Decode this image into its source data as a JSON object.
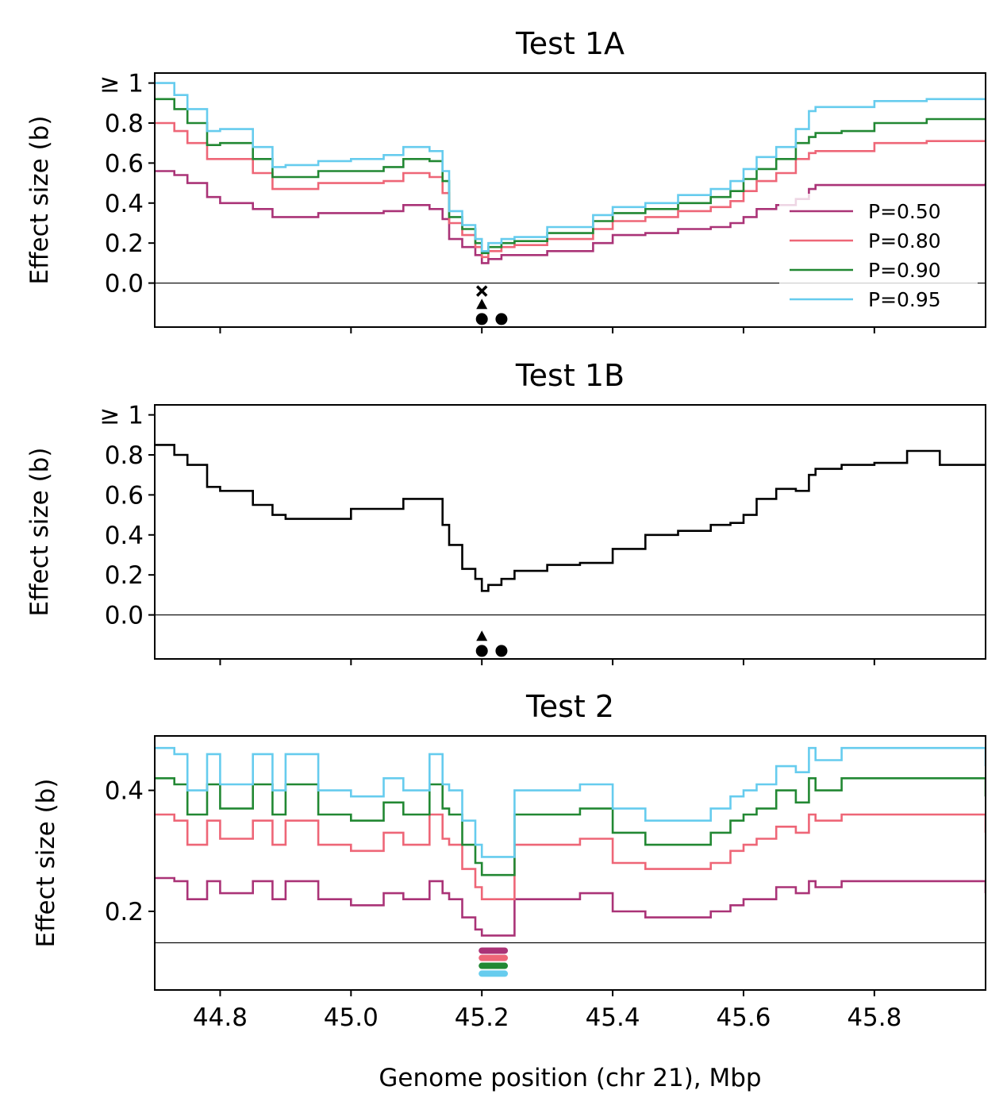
{
  "chart_data": [
    {
      "type": "line",
      "title": "Test 1A",
      "ylabel": "Effect size (b)",
      "xlabel": "",
      "xlim": [
        44.7,
        45.97
      ],
      "ylim": [
        -0.22,
        1.05
      ],
      "x_ticks": [
        "44.8",
        "45.0",
        "45.2",
        "45.4",
        "45.6",
        "45.8"
      ],
      "x_tick_values": [
        44.8,
        45.0,
        45.2,
        45.4,
        45.6,
        45.8
      ],
      "y_ticks": [
        "0.0",
        "0.2",
        "0.4",
        "0.6",
        "0.8",
        "≥ 1"
      ],
      "y_tick_values": [
        0.0,
        0.2,
        0.4,
        0.6,
        0.8,
        1.0
      ],
      "hline": 0.0,
      "legend_placement": "lower-right",
      "x": [
        44.7,
        44.73,
        44.75,
        44.78,
        44.8,
        44.85,
        44.88,
        44.9,
        44.95,
        45.0,
        45.05,
        45.08,
        45.12,
        45.14,
        45.15,
        45.17,
        45.19,
        45.2,
        45.21,
        45.23,
        45.25,
        45.3,
        45.35,
        45.37,
        45.4,
        45.45,
        45.5,
        45.55,
        45.58,
        45.6,
        45.62,
        45.65,
        45.68,
        45.7,
        45.71,
        45.75,
        45.8,
        45.85,
        45.88,
        45.9,
        45.97
      ],
      "series": [
        {
          "name": "P=0.50",
          "color": "#aa3377",
          "values": [
            0.56,
            0.54,
            0.5,
            0.43,
            0.4,
            0.37,
            0.33,
            0.33,
            0.35,
            0.35,
            0.36,
            0.39,
            0.37,
            0.32,
            0.22,
            0.18,
            0.14,
            0.1,
            0.12,
            0.14,
            0.14,
            0.16,
            0.16,
            0.2,
            0.24,
            0.25,
            0.27,
            0.28,
            0.3,
            0.33,
            0.37,
            0.39,
            0.42,
            0.47,
            0.49,
            0.49,
            0.49,
            0.49,
            0.49,
            0.49,
            0.5
          ]
        },
        {
          "name": "P=0.80",
          "color": "#ee6677",
          "values": [
            0.8,
            0.76,
            0.7,
            0.62,
            0.62,
            0.55,
            0.47,
            0.47,
            0.5,
            0.5,
            0.51,
            0.55,
            0.53,
            0.45,
            0.3,
            0.24,
            0.18,
            0.13,
            0.16,
            0.18,
            0.19,
            0.22,
            0.22,
            0.27,
            0.31,
            0.33,
            0.36,
            0.38,
            0.41,
            0.46,
            0.51,
            0.55,
            0.62,
            0.65,
            0.66,
            0.66,
            0.7,
            0.7,
            0.71,
            0.71,
            0.71
          ]
        },
        {
          "name": "P=0.90",
          "color": "#228833",
          "values": [
            0.92,
            0.87,
            0.8,
            0.69,
            0.7,
            0.62,
            0.53,
            0.53,
            0.56,
            0.56,
            0.58,
            0.62,
            0.61,
            0.51,
            0.33,
            0.27,
            0.2,
            0.15,
            0.18,
            0.2,
            0.21,
            0.25,
            0.25,
            0.31,
            0.35,
            0.37,
            0.4,
            0.43,
            0.46,
            0.52,
            0.57,
            0.62,
            0.7,
            0.73,
            0.75,
            0.76,
            0.8,
            0.8,
            0.82,
            0.82,
            0.82
          ]
        },
        {
          "name": "P=0.95",
          "color": "#66ccee",
          "values": [
            1.0,
            0.94,
            0.87,
            0.76,
            0.77,
            0.68,
            0.58,
            0.59,
            0.61,
            0.62,
            0.64,
            0.68,
            0.66,
            0.56,
            0.36,
            0.29,
            0.22,
            0.16,
            0.2,
            0.22,
            0.23,
            0.28,
            0.28,
            0.34,
            0.38,
            0.4,
            0.44,
            0.47,
            0.51,
            0.57,
            0.63,
            0.68,
            0.77,
            0.86,
            0.88,
            0.88,
            0.91,
            0.91,
            0.92,
            0.92,
            0.92
          ]
        }
      ],
      "markers": [
        {
          "shape": "x",
          "x": 45.2,
          "y": -0.04
        },
        {
          "shape": "triangle",
          "x": 45.2,
          "y": -0.11
        },
        {
          "shape": "circle",
          "x": 45.2,
          "y": -0.18
        },
        {
          "shape": "circle",
          "x": 45.23,
          "y": -0.18
        }
      ]
    },
    {
      "type": "line",
      "title": "Test 1B",
      "ylabel": "Effect size (b)",
      "xlabel": "",
      "xlim": [
        44.7,
        45.97
      ],
      "ylim": [
        -0.22,
        1.05
      ],
      "x_ticks": [
        "44.8",
        "45.0",
        "45.2",
        "45.4",
        "45.6",
        "45.8"
      ],
      "x_tick_values": [
        44.8,
        45.0,
        45.2,
        45.4,
        45.6,
        45.8
      ],
      "y_ticks": [
        "0.0",
        "0.2",
        "0.4",
        "0.6",
        "0.8",
        "≥ 1"
      ],
      "y_tick_values": [
        0.0,
        0.2,
        0.4,
        0.6,
        0.8,
        1.0
      ],
      "hline": 0.0,
      "x": [
        44.7,
        44.73,
        44.75,
        44.78,
        44.8,
        44.85,
        44.88,
        44.9,
        44.95,
        45.0,
        45.05,
        45.08,
        45.12,
        45.14,
        45.15,
        45.17,
        45.19,
        45.2,
        45.21,
        45.23,
        45.25,
        45.3,
        45.35,
        45.37,
        45.4,
        45.45,
        45.5,
        45.55,
        45.58,
        45.6,
        45.62,
        45.65,
        45.68,
        45.7,
        45.71,
        45.75,
        45.8,
        45.85,
        45.88,
        45.9,
        45.97
      ],
      "series": [
        {
          "color": "#000000",
          "values": [
            0.85,
            0.8,
            0.75,
            0.64,
            0.62,
            0.55,
            0.5,
            0.48,
            0.48,
            0.53,
            0.53,
            0.58,
            0.58,
            0.45,
            0.35,
            0.23,
            0.18,
            0.12,
            0.15,
            0.18,
            0.22,
            0.25,
            0.26,
            0.26,
            0.33,
            0.4,
            0.42,
            0.45,
            0.46,
            0.5,
            0.58,
            0.63,
            0.62,
            0.7,
            0.73,
            0.75,
            0.76,
            0.82,
            0.82,
            0.75,
            0.75
          ]
        }
      ],
      "markers": [
        {
          "shape": "triangle",
          "x": 45.2,
          "y": -0.11
        },
        {
          "shape": "circle",
          "x": 45.2,
          "y": -0.18
        },
        {
          "shape": "circle",
          "x": 45.23,
          "y": -0.18
        }
      ]
    },
    {
      "type": "line",
      "title": "Test 2",
      "ylabel": "Effect size (b)",
      "xlabel": "Genome position (chr 21), Mbp",
      "xlim": [
        44.7,
        45.97
      ],
      "ylim": [
        0.07,
        0.49
      ],
      "x_ticks": [
        "44.8",
        "45.0",
        "45.2",
        "45.4",
        "45.6",
        "45.8"
      ],
      "x_tick_values": [
        44.8,
        45.0,
        45.2,
        45.4,
        45.6,
        45.8
      ],
      "y_ticks": [
        "0.2",
        "0.4"
      ],
      "y_tick_values": [
        0.2,
        0.4
      ],
      "hline": 0.148,
      "x": [
        44.7,
        44.73,
        44.75,
        44.78,
        44.8,
        44.85,
        44.88,
        44.9,
        44.95,
        45.0,
        45.05,
        45.08,
        45.12,
        45.14,
        45.15,
        45.17,
        45.19,
        45.2,
        45.21,
        45.23,
        45.25,
        45.3,
        45.35,
        45.37,
        45.4,
        45.45,
        45.5,
        45.55,
        45.58,
        45.6,
        45.62,
        45.65,
        45.68,
        45.7,
        45.71,
        45.75,
        45.8,
        45.85,
        45.88,
        45.9,
        45.97
      ],
      "series": [
        {
          "name": "P=0.50",
          "color": "#aa3377",
          "values": [
            0.255,
            0.25,
            0.22,
            0.25,
            0.23,
            0.25,
            0.22,
            0.25,
            0.22,
            0.21,
            0.23,
            0.22,
            0.25,
            0.23,
            0.22,
            0.19,
            0.17,
            0.16,
            0.16,
            0.16,
            0.22,
            0.22,
            0.23,
            0.23,
            0.2,
            0.19,
            0.19,
            0.2,
            0.21,
            0.22,
            0.22,
            0.24,
            0.23,
            0.25,
            0.24,
            0.25,
            0.25,
            0.25,
            0.25,
            0.25,
            0.23
          ]
        },
        {
          "name": "P=0.80",
          "color": "#ee6677",
          "values": [
            0.36,
            0.35,
            0.31,
            0.35,
            0.32,
            0.35,
            0.31,
            0.35,
            0.31,
            0.3,
            0.33,
            0.31,
            0.36,
            0.32,
            0.31,
            0.27,
            0.24,
            0.22,
            0.22,
            0.22,
            0.31,
            0.31,
            0.32,
            0.32,
            0.28,
            0.27,
            0.27,
            0.28,
            0.3,
            0.31,
            0.32,
            0.34,
            0.33,
            0.36,
            0.35,
            0.36,
            0.36,
            0.36,
            0.36,
            0.36,
            0.33
          ]
        },
        {
          "name": "P=0.90",
          "color": "#228833",
          "values": [
            0.42,
            0.41,
            0.36,
            0.41,
            0.37,
            0.41,
            0.36,
            0.41,
            0.36,
            0.35,
            0.38,
            0.36,
            0.41,
            0.37,
            0.36,
            0.31,
            0.28,
            0.26,
            0.26,
            0.26,
            0.36,
            0.36,
            0.37,
            0.37,
            0.33,
            0.31,
            0.31,
            0.33,
            0.35,
            0.36,
            0.37,
            0.4,
            0.38,
            0.42,
            0.4,
            0.42,
            0.42,
            0.42,
            0.42,
            0.42,
            0.39
          ]
        },
        {
          "name": "P=0.95",
          "color": "#66ccee",
          "values": [
            0.47,
            0.46,
            0.4,
            0.46,
            0.41,
            0.46,
            0.4,
            0.46,
            0.4,
            0.39,
            0.42,
            0.4,
            0.46,
            0.41,
            0.4,
            0.35,
            0.31,
            0.29,
            0.29,
            0.29,
            0.4,
            0.4,
            0.41,
            0.41,
            0.37,
            0.35,
            0.35,
            0.37,
            0.39,
            0.4,
            0.41,
            0.44,
            0.43,
            0.47,
            0.45,
            0.47,
            0.47,
            0.47,
            0.47,
            0.47,
            0.44
          ]
        }
      ],
      "marker_bars": [
        {
          "series": "P=0.50",
          "x0": 45.2,
          "x1": 45.235,
          "y": 0.135
        },
        {
          "series": "P=0.80",
          "x0": 45.2,
          "x1": 45.235,
          "y": 0.123
        },
        {
          "series": "P=0.90",
          "x0": 45.2,
          "x1": 45.235,
          "y": 0.11
        },
        {
          "series": "P=0.95",
          "x0": 45.2,
          "x1": 45.235,
          "y": 0.097
        }
      ]
    }
  ]
}
